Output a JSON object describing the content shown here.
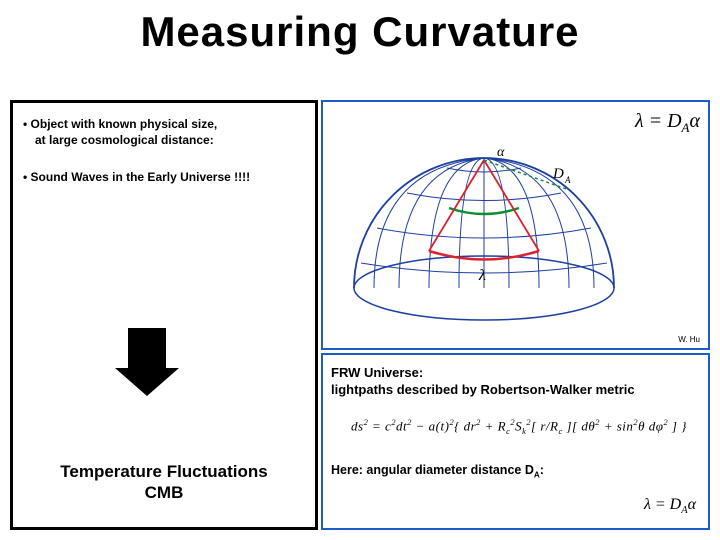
{
  "title": "Measuring  Curvature",
  "left": {
    "bullet1a": "•  Object with known physical size,",
    "bullet1b": "at large cosmological distance:",
    "bullet2": "•   Sound Waves in the Early Universe !!!!",
    "tf1": "Temperature Fluctuations",
    "tf2": "CMB"
  },
  "dome": {
    "formula": "λ = D",
    "formula_sub": "A",
    "formula_tail": "α",
    "alpha": "α",
    "da": "D",
    "da_sub": "A",
    "lambda": "λ",
    "credit": "W. Hu",
    "colors": {
      "outline": "#1d3fa0",
      "grid": "#1d3fa0",
      "arc_green": "#0d8f2f",
      "arc_red": "#d9232e",
      "radii": "#d9232e",
      "dashed": "#0d8f2f"
    }
  },
  "frw": {
    "line1": "FRW  Universe:",
    "line2": "lightpaths described by Robertson-Walker metric",
    "metric_html": "ds<sup>2</sup> = c<sup>2</sup>dt<sup>2</sup> − a(t)<sup>2</sup>{ dr<sup>2</sup> + R<sub>c</sub><sup>2</sup>S<sub>k</sub><sup>2</sup>[ r/R<sub>c</sub> ][ dθ<sup>2</sup> + sin<sup>2</sup>θ dφ<sup>2</sup> ] }",
    "here": "Here:  angular diameter distance D",
    "here_sub": "A",
    "here_tail": ":",
    "bottom_formula": "λ = D",
    "bottom_sub": "A",
    "bottom_tail": "α"
  }
}
